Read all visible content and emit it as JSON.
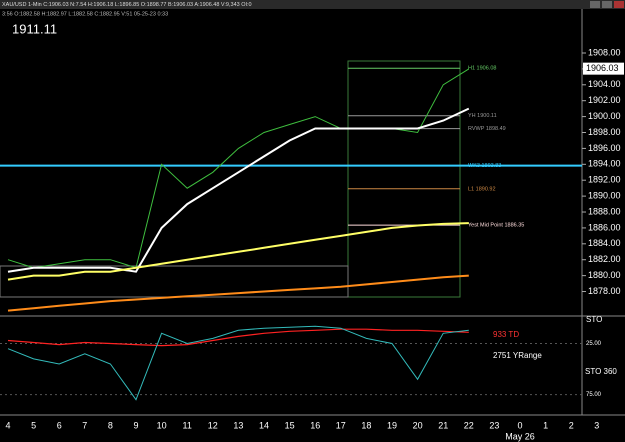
{
  "header": {
    "quote_line": "XAU/USD 1-Min C:1906.03 N:7.54 H:1906.18 L:1896.85 O:1898.77 B:1906.03 A:1906.48 V:9,343 OI:0",
    "bar_line": "3:56 O:1882.58 H:1882.97 L:1882.58 C:1882.95 V:51 05-25-23 0:33"
  },
  "chart_data": [
    {
      "type": "line",
      "title": "1911.11",
      "current_price": 1906.03,
      "categories": [
        "4",
        "5",
        "6",
        "7",
        "8",
        "9",
        "10",
        "11",
        "12",
        "13",
        "14",
        "15",
        "16",
        "17",
        "18",
        "19",
        "20",
        "21",
        "22",
        "23",
        "0",
        "1",
        "2",
        "3"
      ],
      "date_label": "May 26",
      "ylim": [
        1875.3,
        1912.4
      ],
      "yticks": [
        {
          "value": 1878,
          "label": "1878.00"
        },
        {
          "value": 1880,
          "label": "1880.00"
        },
        {
          "value": 1882,
          "label": "1882.00"
        },
        {
          "value": 1884,
          "label": "1884.00"
        },
        {
          "value": 1886,
          "label": "1886.00"
        },
        {
          "value": 1888,
          "label": "1888.00"
        },
        {
          "value": 1890,
          "label": "1890.00"
        },
        {
          "value": 1892,
          "label": "1892.00"
        },
        {
          "value": 1894,
          "label": "1894.00"
        },
        {
          "value": 1896,
          "label": "1896.00"
        },
        {
          "value": 1898,
          "label": "1898.00"
        },
        {
          "value": 1900,
          "label": "1900.00"
        },
        {
          "value": 1902,
          "label": "1902.00"
        },
        {
          "value": 1904,
          "label": "1904.00"
        },
        {
          "value": 1906,
          "label": "1906.00"
        },
        {
          "value": 1908,
          "label": "1908.00"
        }
      ],
      "series": [
        {
          "color": "#3fbf3f",
          "values": [
            1882,
            1881,
            1881.5,
            1882,
            1882,
            1881,
            1894,
            1891,
            1893,
            1896,
            1898,
            1899,
            1900,
            1898.5,
            1898.5,
            1898.5,
            1898,
            1904,
            1906,
            null,
            null,
            null,
            null,
            null
          ]
        },
        {
          "color": "#ffffff",
          "values": [
            1880.5,
            1881,
            1881,
            1881,
            1881,
            1880.5,
            1886,
            1889,
            1891,
            1893,
            1895,
            1897,
            1898.5,
            1898.5,
            1898.5,
            1898.5,
            1898.5,
            1899.5,
            1901,
            null,
            null,
            null,
            null,
            null
          ]
        },
        {
          "color": "#ffff66",
          "values": [
            1879.5,
            1880,
            1880,
            1880.5,
            1880.5,
            1881,
            1881.5,
            1882,
            1882.5,
            1883,
            1883.5,
            1884,
            1884.5,
            1885,
            1885.5,
            1886,
            1886.3,
            1886.5,
            1886.6,
            null,
            null,
            null,
            null,
            null
          ]
        },
        {
          "color": "#ff8c1a",
          "values": [
            1875.6,
            1875.9,
            1876.2,
            1876.5,
            1876.8,
            1877,
            1877.2,
            1877.4,
            1877.6,
            1877.8,
            1878,
            1878.2,
            1878.4,
            1878.6,
            1878.9,
            1879.2,
            1879.5,
            1879.8,
            1880,
            null,
            null,
            null,
            null,
            null
          ]
        }
      ],
      "levels": [
        {
          "value": 1906.08,
          "label": "H1 1906.08",
          "color": "#66cc66",
          "full_width": false
        },
        {
          "value": 1900.11,
          "label": "YH 1900.11",
          "color": "#999999",
          "full_width": false
        },
        {
          "value": 1898.49,
          "label": "RVWP 1898.49",
          "color": "#999999",
          "full_width": false
        },
        {
          "value": 1893.83,
          "label": "WK3 1893.83",
          "color": "#33ccff",
          "full_width": true
        },
        {
          "value": 1890.92,
          "label": "L1 1890.92",
          "color": "#cc8844",
          "full_width": false
        },
        {
          "value": 1886.35,
          "label": "Yest Mid Point 1886.35",
          "color": "#ffdddd",
          "full_width": false
        }
      ]
    },
    {
      "type": "line",
      "ylim": [
        0,
        92
      ],
      "inverted": true,
      "yticks": [
        {
          "value": 25,
          "label": "25.00"
        },
        {
          "value": 75,
          "label": "75.00"
        }
      ],
      "axis_name": "STO",
      "annotations": [
        {
          "text": "933 TD",
          "color": "#ff3333"
        },
        {
          "text": "2751 YRange",
          "color": "#ffffff"
        },
        {
          "text": "STO 360",
          "color": "#ffffff"
        }
      ],
      "series": [
        {
          "color": "#ff2222",
          "values": [
            22,
            24,
            26,
            24,
            25,
            26,
            27,
            26,
            22,
            18,
            15,
            13,
            12,
            11,
            11,
            12,
            12,
            13,
            14,
            null,
            null,
            null,
            null,
            null
          ]
        },
        {
          "color": "#33bbbb",
          "values": [
            30,
            40,
            45,
            35,
            45,
            80,
            15,
            25,
            20,
            12,
            10,
            9,
            8,
            10,
            20,
            25,
            60,
            15,
            12,
            null,
            null,
            null,
            null,
            null
          ]
        }
      ]
    }
  ]
}
